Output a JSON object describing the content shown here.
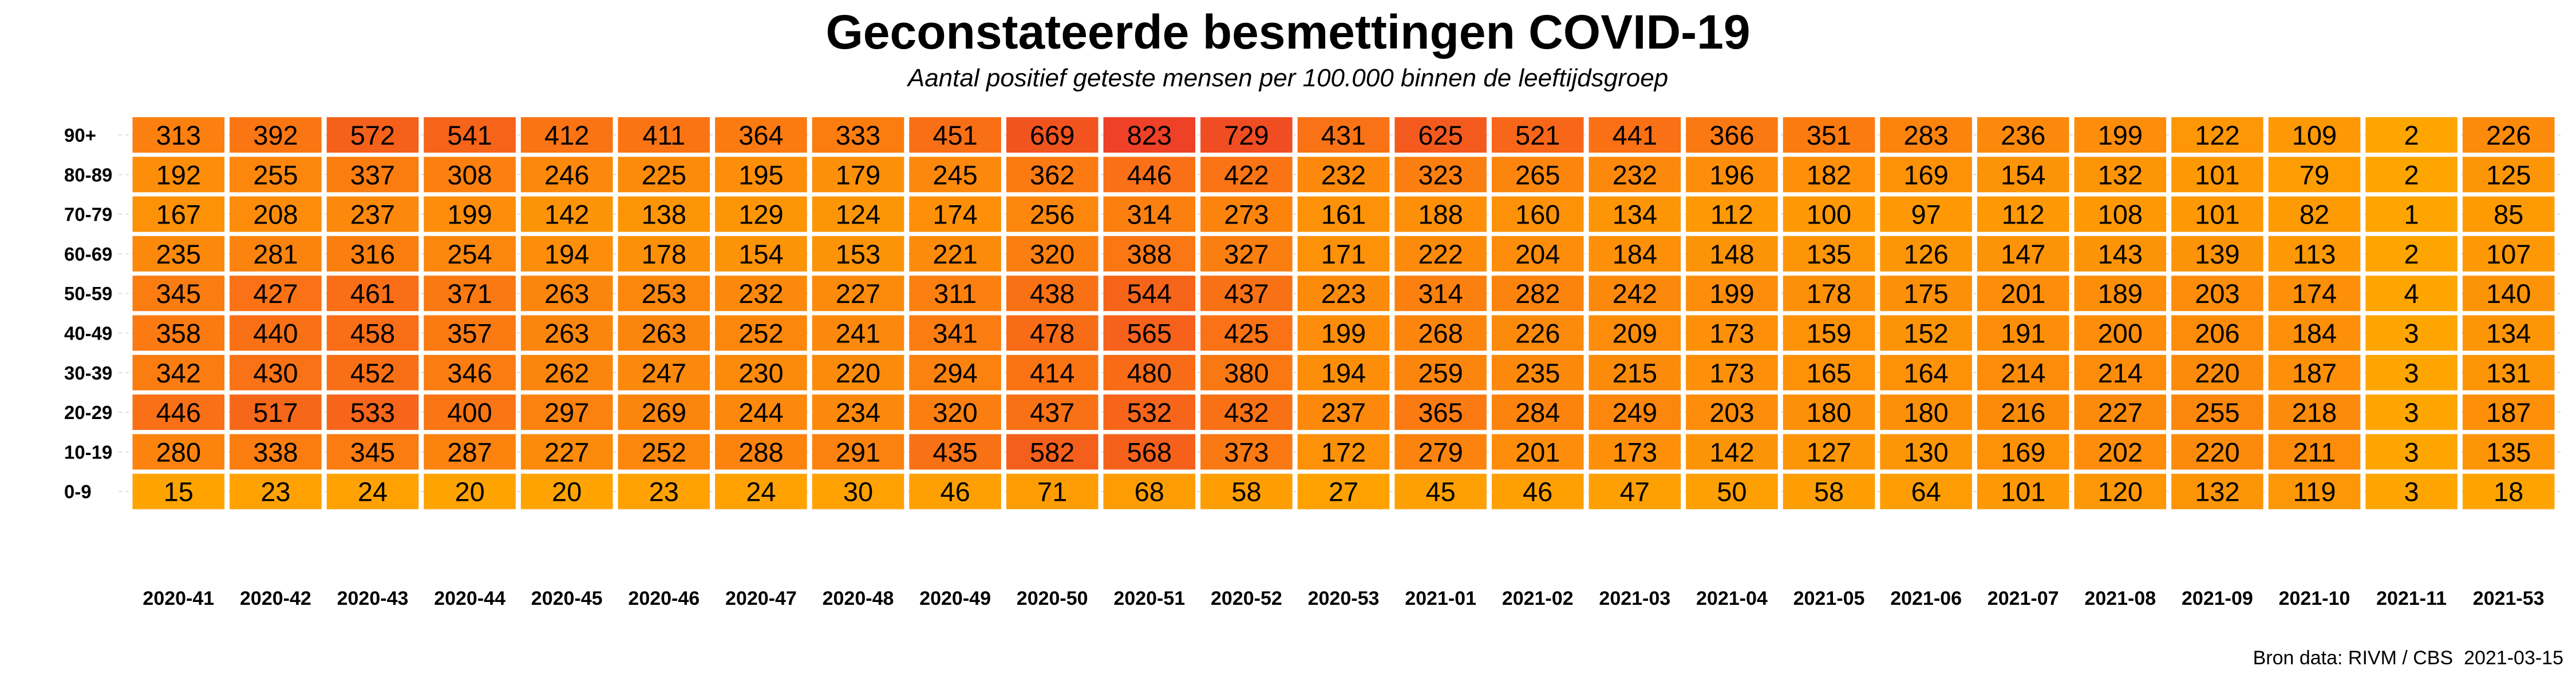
{
  "chart_data": {
    "type": "heatmap",
    "title": "Geconstateerde besmettingen COVID-19",
    "subtitle": "Aantal positief geteste mensen per 100.000 binnen de leeftijdsgroep",
    "columns": [
      "2020-41",
      "2020-42",
      "2020-43",
      "2020-44",
      "2020-45",
      "2020-46",
      "2020-47",
      "2020-48",
      "2020-49",
      "2020-50",
      "2020-51",
      "2020-52",
      "2020-53",
      "2021-01",
      "2021-02",
      "2021-03",
      "2021-04",
      "2021-05",
      "2021-06",
      "2021-07",
      "2021-08",
      "2021-09",
      "2021-10",
      "2021-11",
      "2021-53"
    ],
    "rows": [
      "90+",
      "80-89",
      "70-79",
      "60-69",
      "50-59",
      "40-49",
      "30-39",
      "20-29",
      "10-19",
      "0-9"
    ],
    "values": [
      [
        313,
        392,
        572,
        541,
        412,
        411,
        364,
        333,
        451,
        669,
        823,
        729,
        431,
        625,
        521,
        441,
        366,
        351,
        283,
        236,
        199,
        122,
        109,
        2,
        226
      ],
      [
        192,
        255,
        337,
        308,
        246,
        225,
        195,
        179,
        245,
        362,
        446,
        422,
        232,
        323,
        265,
        232,
        196,
        182,
        169,
        154,
        132,
        101,
        79,
        2,
        125
      ],
      [
        167,
        208,
        237,
        199,
        142,
        138,
        129,
        124,
        174,
        256,
        314,
        273,
        161,
        188,
        160,
        134,
        112,
        100,
        97,
        112,
        108,
        101,
        82,
        1,
        85
      ],
      [
        235,
        281,
        316,
        254,
        194,
        178,
        154,
        153,
        221,
        320,
        388,
        327,
        171,
        222,
        204,
        184,
        148,
        135,
        126,
        147,
        143,
        139,
        113,
        2,
        107
      ],
      [
        345,
        427,
        461,
        371,
        263,
        253,
        232,
        227,
        311,
        438,
        544,
        437,
        223,
        314,
        282,
        242,
        199,
        178,
        175,
        201,
        189,
        203,
        174,
        4,
        140
      ],
      [
        358,
        440,
        458,
        357,
        263,
        263,
        252,
        241,
        341,
        478,
        565,
        425,
        199,
        268,
        226,
        209,
        173,
        159,
        152,
        191,
        200,
        206,
        184,
        3,
        134
      ],
      [
        342,
        430,
        452,
        346,
        262,
        247,
        230,
        220,
        294,
        414,
        480,
        380,
        194,
        259,
        235,
        215,
        173,
        165,
        164,
        214,
        214,
        220,
        187,
        3,
        131
      ],
      [
        446,
        517,
        533,
        400,
        297,
        269,
        244,
        234,
        320,
        437,
        532,
        432,
        237,
        365,
        284,
        249,
        203,
        180,
        180,
        216,
        227,
        255,
        218,
        3,
        187
      ],
      [
        280,
        338,
        345,
        287,
        227,
        252,
        288,
        291,
        435,
        582,
        568,
        373,
        172,
        279,
        201,
        173,
        142,
        127,
        130,
        169,
        202,
        220,
        211,
        3,
        135
      ],
      [
        15,
        23,
        24,
        20,
        20,
        23,
        24,
        30,
        46,
        71,
        68,
        58,
        27,
        45,
        46,
        47,
        50,
        58,
        64,
        101,
        120,
        132,
        119,
        3,
        18
      ]
    ],
    "color_scale": {
      "low": "#ffa500",
      "mid": "#fa7414",
      "high": "#ee4127"
    }
  },
  "footer": {
    "source": "Bron data: RIVM / CBS",
    "date": "2021-03-15"
  }
}
